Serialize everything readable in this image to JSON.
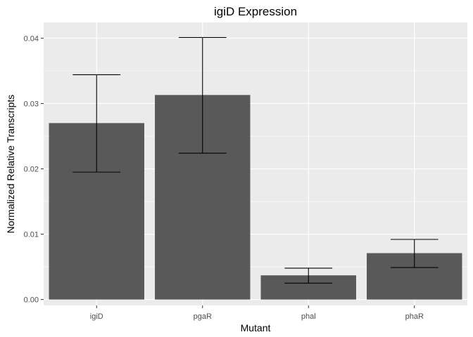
{
  "chart_data": {
    "type": "bar",
    "title": "igiD Expression",
    "xlabel": "Mutant",
    "ylabel": "Normalized Relative Transcripts",
    "categories": [
      "igiD",
      "pgaR",
      "phal",
      "phaR"
    ],
    "values": [
      0.027,
      0.0313,
      0.0037,
      0.0071
    ],
    "error_low": [
      0.0195,
      0.0224,
      0.0025,
      0.0049
    ],
    "error_high": [
      0.0344,
      0.0401,
      0.0048,
      0.0092
    ],
    "ylim": [
      -0.0009,
      0.0424
    ],
    "yticks": [
      0,
      0.01,
      0.02,
      0.03,
      0.04
    ],
    "ytick_labels": [
      "0.00",
      "0.01",
      "0.02",
      "0.03",
      "0.04"
    ],
    "grid": true,
    "legend": "none",
    "colors": {
      "bar": "#595959",
      "panel": "#ebebeb",
      "grid_major": "#ffffff",
      "error_bar": "#000000"
    }
  }
}
